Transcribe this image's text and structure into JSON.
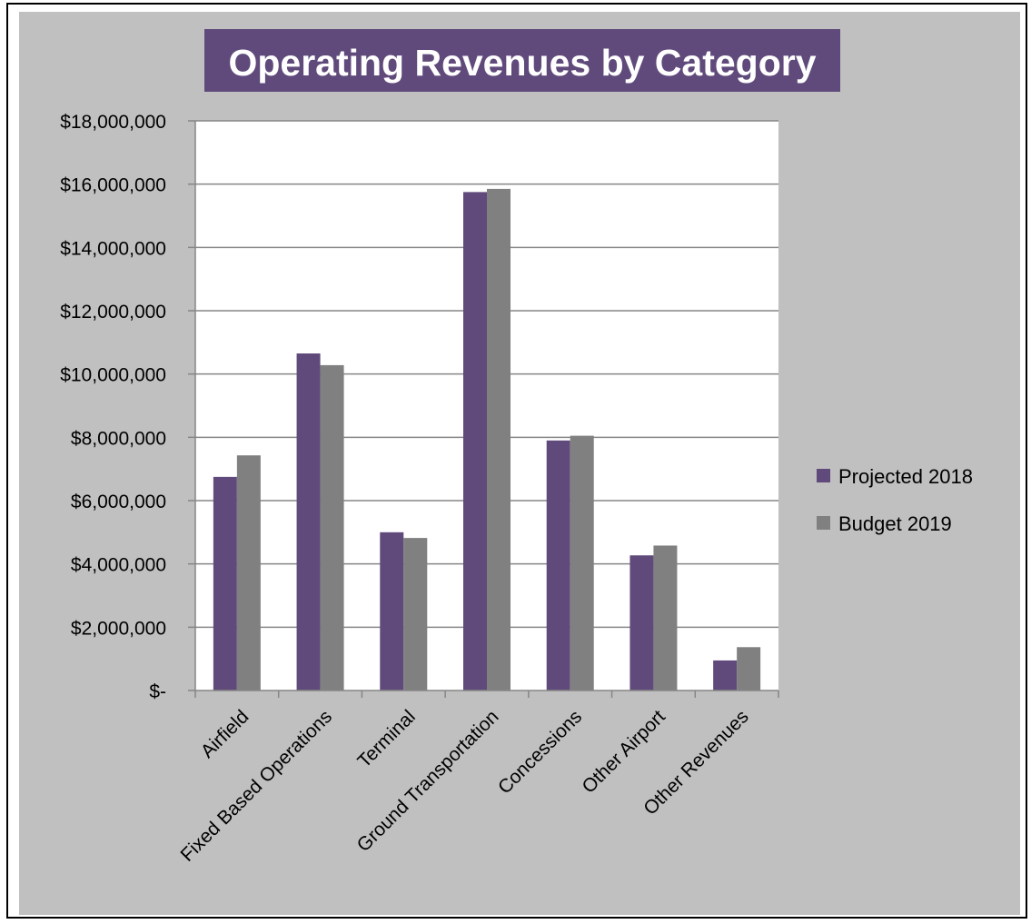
{
  "colors": {
    "chart_background": "#c0c0c0",
    "plot_background": "#ffffff",
    "title_background": "#604a7b",
    "series_projected": "#604a7b",
    "series_budget": "#808080",
    "gridline": "#868686"
  },
  "chart_data": {
    "type": "bar",
    "title": "Operating Revenues by Category",
    "xlabel": "",
    "ylabel": "",
    "categories": [
      "Airfield",
      "Fixed Based Operations",
      "Terminal",
      "Ground Transportation",
      "Concessions",
      "Other Airport",
      "Other Revenues"
    ],
    "series": [
      {
        "name": "Projected 2018",
        "values": [
          6750000,
          10650000,
          5000000,
          15750000,
          7900000,
          4270000,
          950000
        ]
      },
      {
        "name": "Budget 2019",
        "values": [
          7430000,
          10280000,
          4820000,
          15850000,
          8050000,
          4580000,
          1370000
        ]
      }
    ],
    "ylim": [
      0,
      18000000
    ],
    "y_ticks": [
      0,
      2000000,
      4000000,
      6000000,
      8000000,
      10000000,
      12000000,
      14000000,
      16000000,
      18000000
    ],
    "y_tick_labels": [
      "$-",
      "$2,000,000",
      "$4,000,000",
      "$6,000,000",
      "$8,000,000",
      "$10,000,000",
      "$12,000,000",
      "$14,000,000",
      "$16,000,000",
      "$18,000,000"
    ],
    "grid": true,
    "legend_position": "right"
  }
}
